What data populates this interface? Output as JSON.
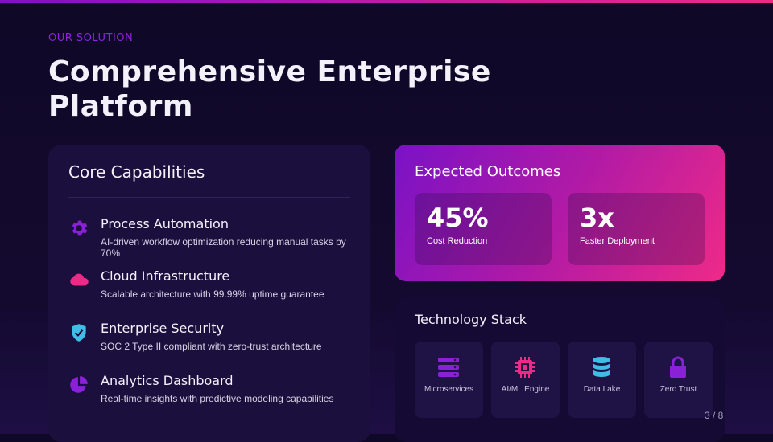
{
  "header": {
    "eyebrow": "OUR SOLUTION",
    "title": "Comprehensive Enterprise Platform"
  },
  "capabilities": {
    "title": "Core Capabilities",
    "items": [
      {
        "name": "Process Automation",
        "desc": "AI-driven workflow optimization reducing manual tasks by 70%",
        "icon": "gear-icon"
      },
      {
        "name": "Cloud Infrastructure",
        "desc": "Scalable architecture with 99.99% uptime guarantee",
        "icon": "cloud-icon"
      },
      {
        "name": "Enterprise Security",
        "desc": "SOC 2 Type II compliant with zero-trust architecture",
        "icon": "shield-check-icon"
      },
      {
        "name": "Analytics Dashboard",
        "desc": "Real-time insights with predictive modeling capabilities",
        "icon": "pie-chart-icon"
      }
    ]
  },
  "outcomes": {
    "title": "Expected Outcomes",
    "metrics": [
      {
        "value": "45%",
        "label": "Cost Reduction"
      },
      {
        "value": "3x",
        "label": "Faster Deployment"
      }
    ]
  },
  "tech_stack": {
    "title": "Technology Stack",
    "items": [
      {
        "label": "Microservices",
        "icon": "server-icon"
      },
      {
        "label": "AI/ML Engine",
        "icon": "chip-icon"
      },
      {
        "label": "Data Lake",
        "icon": "database-icon"
      },
      {
        "label": "Zero Trust",
        "icon": "lock-icon"
      }
    ]
  },
  "footer": {
    "page": "3 / 8"
  },
  "colors": {
    "accent_purple": "#8d22e0",
    "accent_pink": "#ef2a86",
    "accent_cyan": "#3fbde6"
  }
}
